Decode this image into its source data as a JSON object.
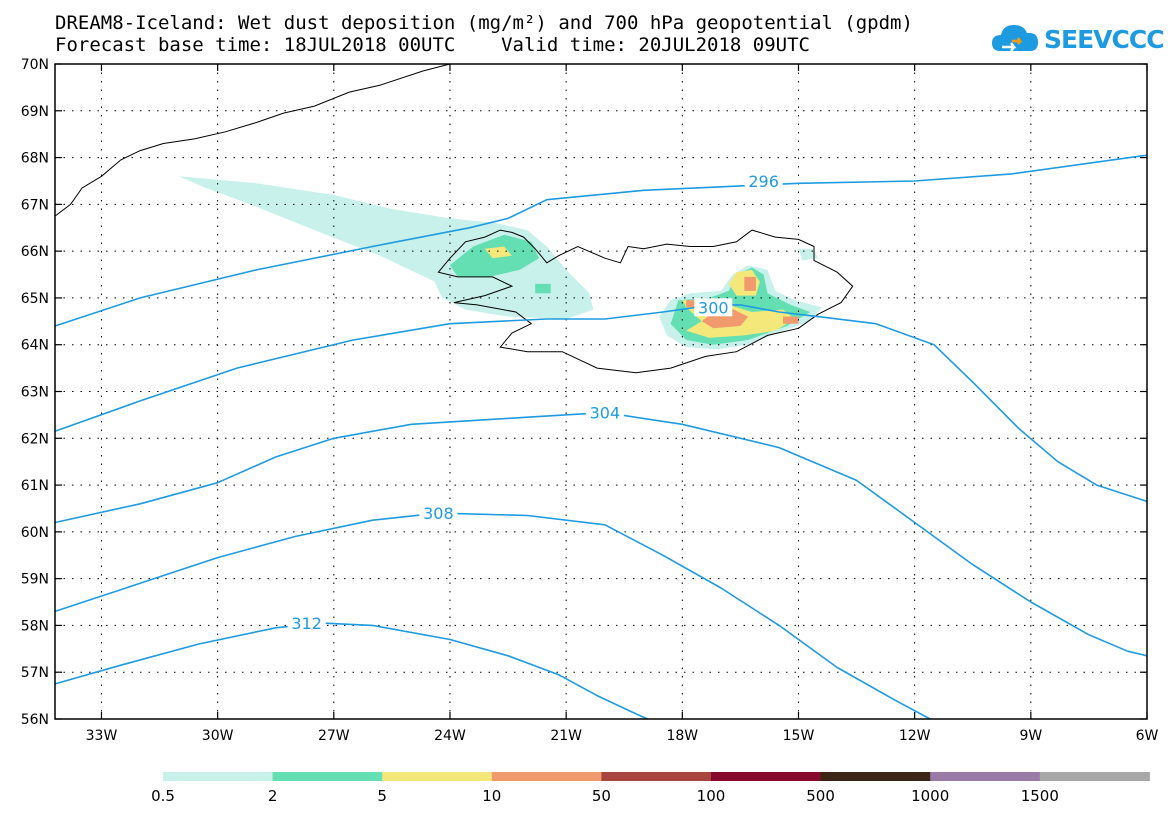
{
  "title_line1": "DREAM8-Iceland: Wet dust deposition (mg/m²) and 700 hPa geopotential (gpdm)",
  "title_line2": "Forecast base time: 18JUL2018 00UTC    Valid time: 20JUL2018 09UTC",
  "logo_text": "SEEVCCC",
  "map": {
    "lon_range": [
      -34.2,
      -6
    ],
    "lat_range": [
      56,
      70
    ],
    "lon_ticks": [
      {
        "value": -33,
        "label": "33W"
      },
      {
        "value": -30,
        "label": "30W"
      },
      {
        "value": -27,
        "label": "27W"
      },
      {
        "value": -24,
        "label": "24W"
      },
      {
        "value": -21,
        "label": "21W"
      },
      {
        "value": -18,
        "label": "18W"
      },
      {
        "value": -15,
        "label": "15W"
      },
      {
        "value": -12,
        "label": "12W"
      },
      {
        "value": -9,
        "label": "9W"
      },
      {
        "value": -6,
        "label": "6W"
      }
    ],
    "lat_ticks": [
      {
        "value": 56,
        "label": "56N"
      },
      {
        "value": 57,
        "label": "57N"
      },
      {
        "value": 58,
        "label": "58N"
      },
      {
        "value": 59,
        "label": "59N"
      },
      {
        "value": 60,
        "label": "60N"
      },
      {
        "value": 61,
        "label": "61N"
      },
      {
        "value": 62,
        "label": "62N"
      },
      {
        "value": 63,
        "label": "63N"
      },
      {
        "value": 64,
        "label": "64N"
      },
      {
        "value": 65,
        "label": "65N"
      },
      {
        "value": 66,
        "label": "66N"
      },
      {
        "value": 67,
        "label": "67N"
      },
      {
        "value": 68,
        "label": "68N"
      },
      {
        "value": 69,
        "label": "69N"
      },
      {
        "value": 70,
        "label": "70N"
      }
    ],
    "grid": true,
    "contour_color": "#1e9be0",
    "contours": [
      {
        "label": "296",
        "label_at": [
          -15.9,
          67.5
        ],
        "points": [
          [
            -34.2,
            64.4
          ],
          [
            -32,
            65.0
          ],
          [
            -29,
            65.6
          ],
          [
            -26,
            66.1
          ],
          [
            -23.5,
            66.5
          ],
          [
            -22.5,
            66.7
          ],
          [
            -21.5,
            67.1
          ],
          [
            -19,
            67.3
          ],
          [
            -15,
            67.45
          ],
          [
            -12,
            67.5
          ],
          [
            -9.5,
            67.65
          ],
          [
            -6,
            68.05
          ]
        ]
      },
      {
        "label": "300",
        "label_at": [
          -17.2,
          64.8
        ],
        "points": [
          [
            -34.2,
            62.15
          ],
          [
            -32,
            62.8
          ],
          [
            -29.5,
            63.5
          ],
          [
            -26.5,
            64.1
          ],
          [
            -24,
            64.45
          ],
          [
            -21.5,
            64.55
          ],
          [
            -20,
            64.55
          ],
          [
            -18.5,
            64.7
          ],
          [
            -17.2,
            64.85
          ],
          [
            -16.5,
            64.85
          ],
          [
            -15.5,
            64.7
          ],
          [
            -14.5,
            64.6
          ],
          [
            -13,
            64.45
          ],
          [
            -11.5,
            64.0
          ],
          [
            -10.5,
            63.2
          ],
          [
            -9.3,
            62.2
          ],
          [
            -8.3,
            61.5
          ],
          [
            -7.3,
            61.0
          ],
          [
            -6,
            60.65
          ]
        ]
      },
      {
        "label": "304",
        "label_at": [
          -20,
          62.55
        ],
        "points": [
          [
            -34.2,
            60.2
          ],
          [
            -32,
            60.6
          ],
          [
            -30,
            61.05
          ],
          [
            -28.5,
            61.6
          ],
          [
            -27,
            62.0
          ],
          [
            -25,
            62.3
          ],
          [
            -22,
            62.45
          ],
          [
            -20,
            62.55
          ],
          [
            -18,
            62.3
          ],
          [
            -15.5,
            61.8
          ],
          [
            -13.5,
            61.1
          ],
          [
            -12,
            60.2
          ],
          [
            -10.5,
            59.3
          ],
          [
            -9,
            58.5
          ],
          [
            -7.5,
            57.8
          ],
          [
            -6.5,
            57.45
          ],
          [
            -6,
            57.35
          ]
        ]
      },
      {
        "label": "308",
        "label_at": [
          -24.3,
          60.4
        ],
        "points": [
          [
            -34.2,
            58.3
          ],
          [
            -32,
            58.9
          ],
          [
            -30,
            59.45
          ],
          [
            -28,
            59.9
          ],
          [
            -26,
            60.25
          ],
          [
            -24.3,
            60.4
          ],
          [
            -22,
            60.35
          ],
          [
            -20,
            60.15
          ],
          [
            -18.5,
            59.5
          ],
          [
            -17,
            58.8
          ],
          [
            -15.5,
            58.0
          ],
          [
            -14,
            57.1
          ],
          [
            -12.5,
            56.4
          ],
          [
            -11.6,
            56.0
          ]
        ]
      },
      {
        "label": "312",
        "label_at": [
          -27.7,
          58.05
        ],
        "points": [
          [
            -34.2,
            56.75
          ],
          [
            -32.5,
            57.15
          ],
          [
            -30.5,
            57.6
          ],
          [
            -28.5,
            57.95
          ],
          [
            -27.3,
            58.05
          ],
          [
            -26,
            58.0
          ],
          [
            -24,
            57.7
          ],
          [
            -22.5,
            57.35
          ],
          [
            -21.2,
            56.95
          ],
          [
            -20.2,
            56.5
          ],
          [
            -19.3,
            56.15
          ],
          [
            -18.9,
            56.0
          ]
        ]
      }
    ],
    "coastline_color": "#000000",
    "iceland_outline": [
      [
        -24.3,
        65.55
      ],
      [
        -24.0,
        65.85
      ],
      [
        -23.6,
        66.2
      ],
      [
        -23.1,
        66.3
      ],
      [
        -22.7,
        66.45
      ],
      [
        -22.4,
        66.4
      ],
      [
        -22.1,
        66.3
      ],
      [
        -21.8,
        66.05
      ],
      [
        -21.5,
        65.75
      ],
      [
        -21.2,
        65.9
      ],
      [
        -20.7,
        66.1
      ],
      [
        -20.0,
        65.85
      ],
      [
        -19.6,
        65.75
      ],
      [
        -19.4,
        66.1
      ],
      [
        -19.0,
        66.05
      ],
      [
        -18.4,
        66.15
      ],
      [
        -17.8,
        66.1
      ],
      [
        -17.2,
        66.1
      ],
      [
        -16.6,
        66.2
      ],
      [
        -16.2,
        66.45
      ],
      [
        -15.6,
        66.3
      ],
      [
        -15.0,
        66.25
      ],
      [
        -14.6,
        66.1
      ],
      [
        -14.6,
        65.8
      ],
      [
        -14.0,
        65.55
      ],
      [
        -13.6,
        65.25
      ],
      [
        -13.9,
        64.9
      ],
      [
        -14.5,
        64.65
      ],
      [
        -15.0,
        64.35
      ],
      [
        -15.8,
        64.2
      ],
      [
        -16.6,
        63.85
      ],
      [
        -17.4,
        63.75
      ],
      [
        -18.3,
        63.5
      ],
      [
        -19.2,
        63.4
      ],
      [
        -20.2,
        63.5
      ],
      [
        -21.1,
        63.85
      ],
      [
        -22.0,
        63.85
      ],
      [
        -22.7,
        63.95
      ],
      [
        -22.4,
        64.25
      ],
      [
        -21.9,
        64.45
      ],
      [
        -22.3,
        64.7
      ],
      [
        -23.3,
        64.85
      ],
      [
        -23.9,
        64.9
      ],
      [
        -23.1,
        65.05
      ],
      [
        -22.4,
        65.25
      ],
      [
        -22.9,
        65.45
      ],
      [
        -23.8,
        65.45
      ]
    ],
    "greenland_coast": [
      [
        -34.2,
        66.75
      ],
      [
        -33.8,
        67.0
      ],
      [
        -33.5,
        67.35
      ],
      [
        -33.0,
        67.6
      ],
      [
        -32.5,
        67.95
      ],
      [
        -32.0,
        68.15
      ],
      [
        -31.4,
        68.3
      ],
      [
        -30.6,
        68.4
      ],
      [
        -29.8,
        68.55
      ],
      [
        -29.0,
        68.75
      ],
      [
        -28.3,
        68.95
      ],
      [
        -27.5,
        69.1
      ],
      [
        -26.6,
        69.4
      ],
      [
        -25.8,
        69.55
      ],
      [
        -24.7,
        69.85
      ],
      [
        -24.0,
        70.0
      ]
    ],
    "dust_colors": {
      "0.5": "#c7f1ea",
      "2": "#64dfb3",
      "5": "#f5e87a",
      "10": "#f09a6e",
      "50": "#a8453e"
    },
    "dust_areas": [
      {
        "level": "0.5",
        "points": [
          [
            -31.0,
            67.6
          ],
          [
            -29.0,
            67.45
          ],
          [
            -27.0,
            67.2
          ],
          [
            -25.5,
            66.9
          ],
          [
            -24.0,
            66.7
          ],
          [
            -22.8,
            66.6
          ],
          [
            -22.0,
            66.45
          ],
          [
            -21.5,
            66.1
          ],
          [
            -21.0,
            65.6
          ],
          [
            -20.4,
            65.1
          ],
          [
            -20.3,
            64.75
          ],
          [
            -21.0,
            64.55
          ],
          [
            -22.5,
            64.6
          ],
          [
            -23.6,
            64.75
          ],
          [
            -24.2,
            65.0
          ],
          [
            -24.4,
            65.35
          ],
          [
            -25.8,
            65.9
          ],
          [
            -27.5,
            66.45
          ],
          [
            -29.0,
            66.95
          ],
          [
            -30.3,
            67.35
          ]
        ]
      },
      {
        "level": "0.5",
        "points": [
          [
            -18.3,
            64.95
          ],
          [
            -17.8,
            65.1
          ],
          [
            -17.0,
            65.15
          ],
          [
            -16.7,
            65.5
          ],
          [
            -16.3,
            65.7
          ],
          [
            -15.8,
            65.6
          ],
          [
            -15.6,
            65.15
          ],
          [
            -15.1,
            64.95
          ],
          [
            -14.4,
            64.8
          ],
          [
            -14.7,
            64.5
          ],
          [
            -15.4,
            64.3
          ],
          [
            -16.3,
            64.0
          ],
          [
            -17.1,
            63.9
          ],
          [
            -17.9,
            63.95
          ],
          [
            -18.4,
            64.2
          ],
          [
            -18.6,
            64.6
          ]
        ]
      },
      {
        "level": "0.5",
        "points": [
          [
            -15.0,
            66.05
          ],
          [
            -14.6,
            66.05
          ],
          [
            -14.5,
            65.85
          ],
          [
            -14.9,
            65.8
          ]
        ]
      },
      {
        "level": "2",
        "points": [
          [
            -24.0,
            65.7
          ],
          [
            -23.4,
            66.1
          ],
          [
            -22.6,
            66.35
          ],
          [
            -21.9,
            66.2
          ],
          [
            -21.7,
            65.85
          ],
          [
            -22.2,
            65.6
          ],
          [
            -23.0,
            65.45
          ],
          [
            -23.8,
            65.45
          ]
        ]
      },
      {
        "level": "2",
        "points": [
          [
            -18.1,
            64.95
          ],
          [
            -17.3,
            65.0
          ],
          [
            -16.8,
            65.15
          ],
          [
            -16.6,
            65.5
          ],
          [
            -16.2,
            65.65
          ],
          [
            -15.9,
            65.5
          ],
          [
            -15.8,
            65.1
          ],
          [
            -15.2,
            64.85
          ],
          [
            -14.7,
            64.7
          ],
          [
            -15.3,
            64.4
          ],
          [
            -16.3,
            64.1
          ],
          [
            -17.2,
            64.0
          ],
          [
            -17.9,
            64.1
          ],
          [
            -18.3,
            64.45
          ]
        ]
      },
      {
        "level": "2",
        "points": [
          [
            -21.8,
            65.3
          ],
          [
            -21.4,
            65.3
          ],
          [
            -21.4,
            65.1
          ],
          [
            -21.8,
            65.1
          ]
        ]
      },
      {
        "level": "5",
        "points": [
          [
            -23.1,
            66.05
          ],
          [
            -22.6,
            66.1
          ],
          [
            -22.4,
            65.9
          ],
          [
            -22.9,
            65.85
          ]
        ]
      },
      {
        "level": "5",
        "points": [
          [
            -18.0,
            64.95
          ],
          [
            -17.2,
            64.95
          ],
          [
            -16.6,
            64.8
          ],
          [
            -16.2,
            64.7
          ],
          [
            -15.4,
            64.75
          ],
          [
            -15.1,
            64.55
          ],
          [
            -15.6,
            64.3
          ],
          [
            -16.4,
            64.2
          ],
          [
            -17.3,
            64.15
          ],
          [
            -17.9,
            64.3
          ],
          [
            -17.5,
            64.5
          ],
          [
            -17.9,
            64.8
          ]
        ]
      },
      {
        "level": "5",
        "points": [
          [
            -16.6,
            65.55
          ],
          [
            -16.2,
            65.6
          ],
          [
            -16.0,
            65.35
          ],
          [
            -16.1,
            65.05
          ],
          [
            -16.6,
            65.05
          ],
          [
            -16.8,
            65.3
          ]
        ]
      },
      {
        "level": "10",
        "points": [
          [
            -17.2,
            64.7
          ],
          [
            -16.8,
            64.8
          ],
          [
            -16.3,
            64.6
          ],
          [
            -16.5,
            64.4
          ],
          [
            -17.2,
            64.35
          ],
          [
            -17.5,
            64.5
          ]
        ]
      },
      {
        "level": "10",
        "points": [
          [
            -16.4,
            65.45
          ],
          [
            -16.1,
            65.45
          ],
          [
            -16.1,
            65.15
          ],
          [
            -16.4,
            65.15
          ]
        ]
      },
      {
        "level": "10",
        "points": [
          [
            -15.4,
            64.6
          ],
          [
            -15.0,
            64.6
          ],
          [
            -15.0,
            64.45
          ],
          [
            -15.4,
            64.45
          ]
        ]
      },
      {
        "level": "10",
        "points": [
          [
            -17.9,
            64.95
          ],
          [
            -17.5,
            64.95
          ],
          [
            -17.5,
            64.8
          ],
          [
            -17.9,
            64.8
          ]
        ]
      }
    ]
  },
  "legend": {
    "labels": [
      "0.5",
      "2",
      "5",
      "10",
      "50",
      "100",
      "500",
      "1000",
      "1500"
    ],
    "colors": [
      "#c7f1ea",
      "#64dfb3",
      "#f5e87a",
      "#f09a6e",
      "#a8453e",
      "#880a2c",
      "#3a2516",
      "#9a7ba8",
      "#a8a8a8"
    ]
  }
}
